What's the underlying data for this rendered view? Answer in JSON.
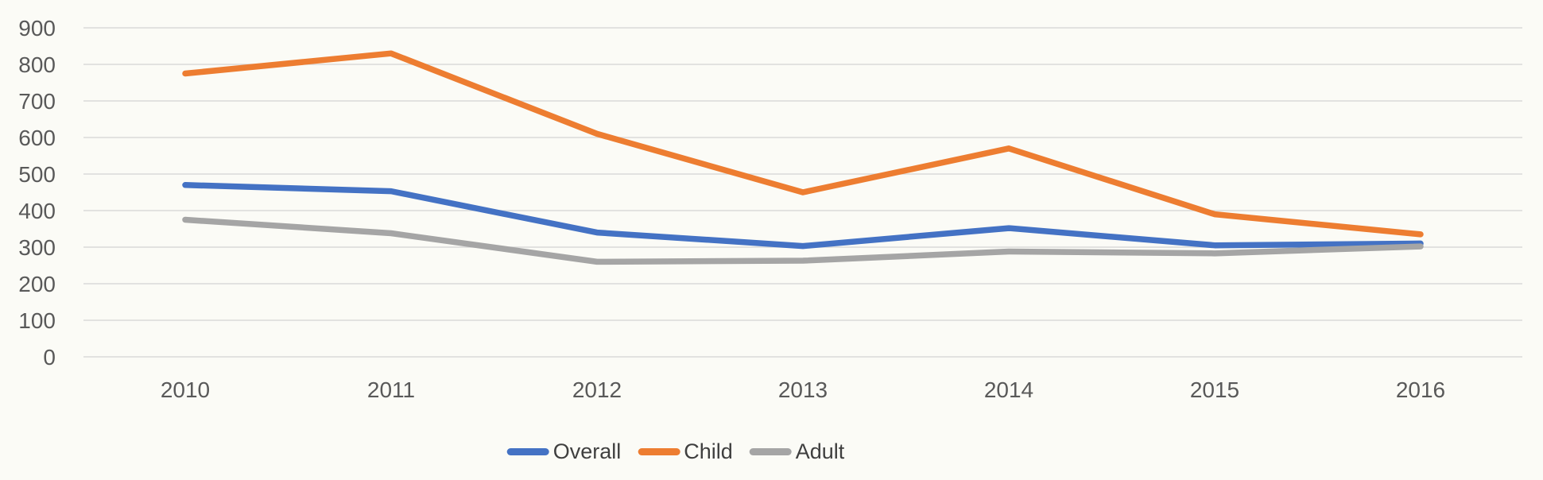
{
  "chart_data": {
    "type": "line",
    "title": "",
    "categories": [
      "2010",
      "2011",
      "2012",
      "2013",
      "2014",
      "2015",
      "2016"
    ],
    "series": [
      {
        "name": "Overall",
        "color": "#4472C4",
        "values": [
          470,
          453,
          340,
          303,
          352,
          305,
          310
        ]
      },
      {
        "name": "Child",
        "color": "#ED7D31",
        "values": [
          775,
          830,
          610,
          450,
          570,
          390,
          335
        ]
      },
      {
        "name": "Adult",
        "color": "#A5A5A5",
        "values": [
          375,
          338,
          260,
          263,
          288,
          283,
          302
        ]
      }
    ],
    "ylim": [
      0,
      900
    ],
    "ytick_interval": 100,
    "ytick_labels": [
      "0",
      "100",
      "200",
      "300",
      "400",
      "500",
      "600",
      "700",
      "800",
      "900"
    ],
    "xlabel": "",
    "ylabel": "",
    "grid": true,
    "legend_position": "bottom"
  },
  "colors": {
    "background": "#FBFBF6",
    "gridline": "#D9D9D9",
    "tick_text": "#595959",
    "legend_text": "#3F3F3F"
  }
}
